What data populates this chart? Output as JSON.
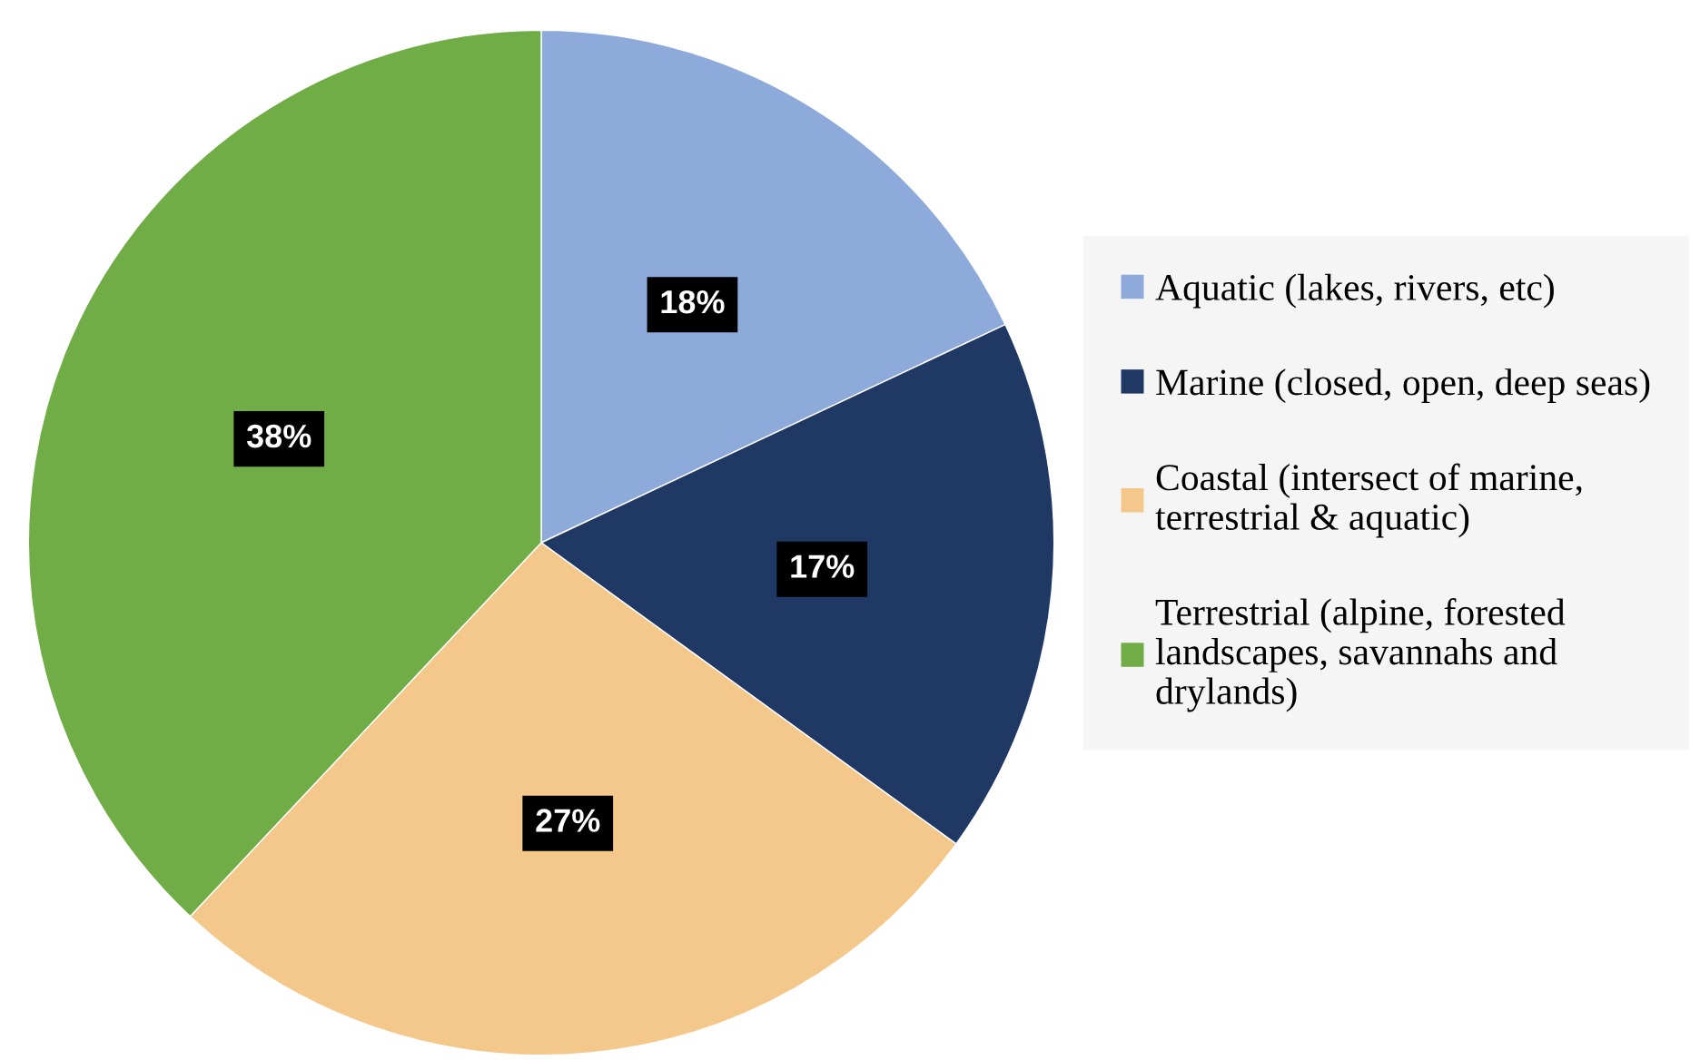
{
  "chart_data": {
    "type": "pie",
    "categories": [
      "Aquatic (lakes, rivers, etc)",
      "Marine (closed, open, deep seas)",
      "Coastal (intersect of marine,\nterrestrial & aquatic)",
      "Terrestrial (alpine, forested\nlandscapes, savannahs and\ndrylands)"
    ],
    "values": [
      18,
      17,
      27,
      38
    ],
    "colors": [
      "#8eaadb",
      "#203864",
      "#f4c78a",
      "#70ad47"
    ],
    "value_labels": [
      "18%",
      "17%",
      "27%",
      "38%"
    ],
    "legend": "right"
  }
}
